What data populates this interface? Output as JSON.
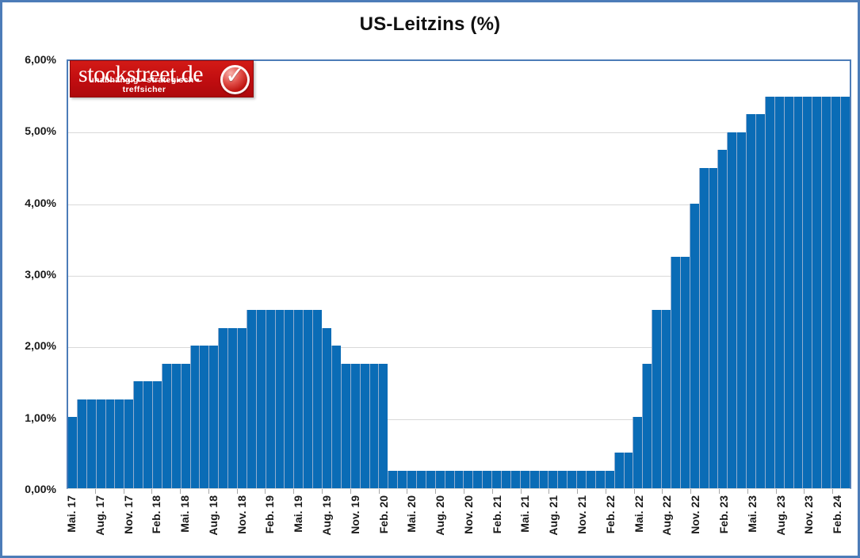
{
  "title": "US-Leitzins (%)",
  "logo": {
    "brand": "stockstreet.de",
    "tagline": "unabhängig • strategisch • treffsicher",
    "badge": "check-icon",
    "background_color": "#c00d10"
  },
  "colors": {
    "bar": "#0a6cb6",
    "bar_divider": "#93aecf",
    "plot_border": "#4c7cb8",
    "gridline": "#d9d9d9",
    "outer_border": "#4c7cb8"
  },
  "chart_data": {
    "type": "bar",
    "title": "US-Leitzins (%)",
    "xlabel": "",
    "ylabel": "",
    "ylim": [
      0,
      6
    ],
    "grid": true,
    "x_label_every": 3,
    "y_tick_labels": [
      "6,00%",
      "5,00%",
      "4,00%",
      "3,00%",
      "2,00%",
      "1,00%",
      "0,00%"
    ],
    "x_tick_labels": [
      "Mai. 17",
      "Aug. 17",
      "Nov. 17",
      "Feb. 18",
      "Mai. 18",
      "Aug. 18",
      "Nov. 18",
      "Feb. 19",
      "Mai. 19",
      "Aug. 19",
      "Nov. 19",
      "Feb. 20",
      "Mai. 20",
      "Aug. 20",
      "Nov. 20",
      "Feb. 21",
      "Mai. 21",
      "Aug. 21",
      "Nov. 21",
      "Feb. 22",
      "Mai. 22",
      "Aug. 22",
      "Nov. 22",
      "Feb. 23",
      "Mai. 23",
      "Aug. 23",
      "Nov. 23",
      "Feb. 24"
    ],
    "categories": [
      "Mai. 17",
      "Jun. 17",
      "Jul. 17",
      "Aug. 17",
      "Sep. 17",
      "Okt. 17",
      "Nov. 17",
      "Dez. 17",
      "Jan. 18",
      "Feb. 18",
      "Mär. 18",
      "Apr. 18",
      "Mai. 18",
      "Jun. 18",
      "Jul. 18",
      "Aug. 18",
      "Sep. 18",
      "Okt. 18",
      "Nov. 18",
      "Dez. 18",
      "Jan. 19",
      "Feb. 19",
      "Mär. 19",
      "Apr. 19",
      "Mai. 19",
      "Jun. 19",
      "Jul. 19",
      "Aug. 19",
      "Sep. 19",
      "Okt. 19",
      "Nov. 19",
      "Dez. 19",
      "Jan. 20",
      "Feb. 20",
      "Mär. 20",
      "Apr. 20",
      "Mai. 20",
      "Jun. 20",
      "Jul. 20",
      "Aug. 20",
      "Sep. 20",
      "Okt. 20",
      "Nov. 20",
      "Dez. 20",
      "Jan. 21",
      "Feb. 21",
      "Mär. 21",
      "Apr. 21",
      "Mai. 21",
      "Jun. 21",
      "Jul. 21",
      "Aug. 21",
      "Sep. 21",
      "Okt. 21",
      "Nov. 21",
      "Dez. 21",
      "Jan. 22",
      "Feb. 22",
      "Mär. 22",
      "Apr. 22",
      "Mai. 22",
      "Jun. 22",
      "Jul. 22",
      "Aug. 22",
      "Sep. 22",
      "Okt. 22",
      "Nov. 22",
      "Dez. 22",
      "Jan. 23",
      "Feb. 23",
      "Mär. 23",
      "Apr. 23",
      "Mai. 23",
      "Jun. 23",
      "Jul. 23",
      "Aug. 23",
      "Sep. 23",
      "Okt. 23",
      "Nov. 23",
      "Dez. 23",
      "Jan. 24",
      "Feb. 24",
      "Mär. 24"
    ],
    "values": [
      1.0,
      1.25,
      1.25,
      1.25,
      1.25,
      1.25,
      1.25,
      1.5,
      1.5,
      1.5,
      1.75,
      1.75,
      1.75,
      2.0,
      2.0,
      2.0,
      2.25,
      2.25,
      2.25,
      2.5,
      2.5,
      2.5,
      2.5,
      2.5,
      2.5,
      2.5,
      2.5,
      2.25,
      2.0,
      1.75,
      1.75,
      1.75,
      1.75,
      1.75,
      0.25,
      0.25,
      0.25,
      0.25,
      0.25,
      0.25,
      0.25,
      0.25,
      0.25,
      0.25,
      0.25,
      0.25,
      0.25,
      0.25,
      0.25,
      0.25,
      0.25,
      0.25,
      0.25,
      0.25,
      0.25,
      0.25,
      0.25,
      0.25,
      0.5,
      0.5,
      1.0,
      1.75,
      2.5,
      2.5,
      3.25,
      3.25,
      4.0,
      4.5,
      4.5,
      4.75,
      5.0,
      5.0,
      5.25,
      5.25,
      5.5,
      5.5,
      5.5,
      5.5,
      5.5,
      5.5,
      5.5,
      5.5,
      5.5
    ]
  }
}
